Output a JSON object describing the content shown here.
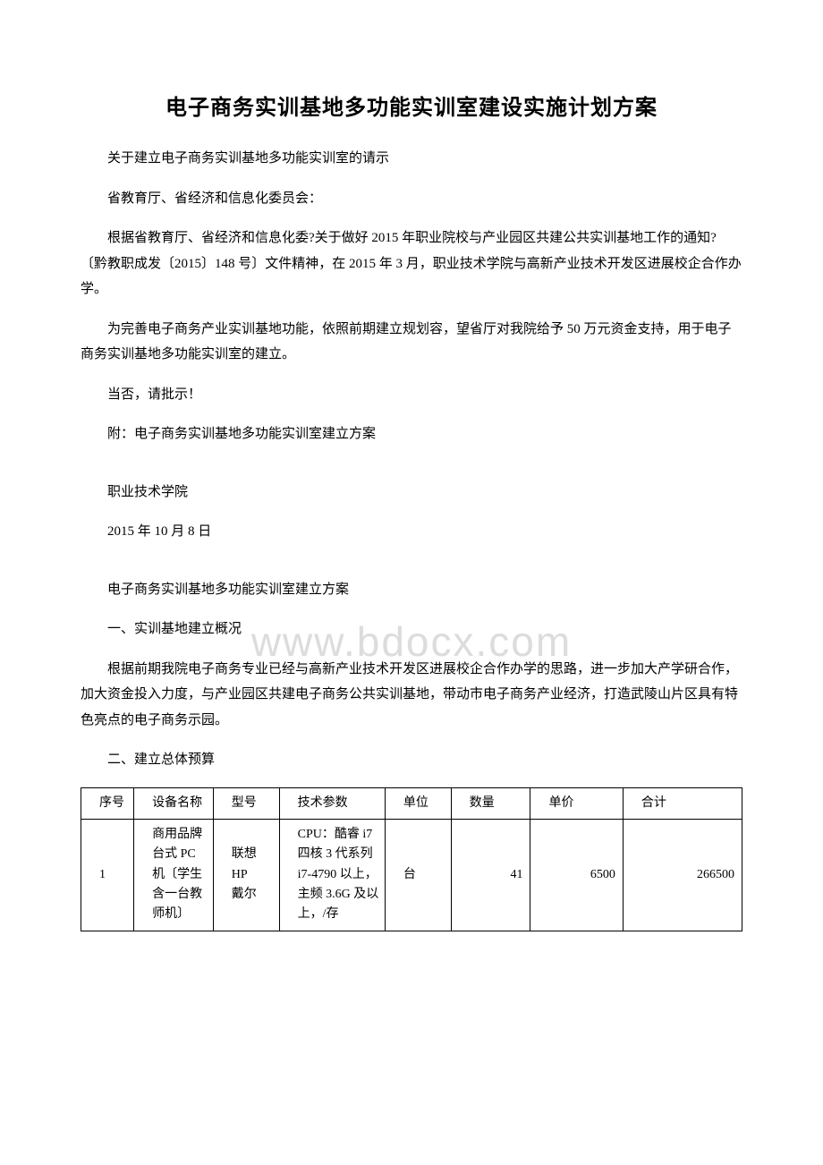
{
  "title": "电子商务实训基地多功能实训室建设实施计划方案",
  "p1": "关于建立电子商务实训基地多功能实训室的请示",
  "p2": "省教育厅、省经济和信息化委员会：",
  "p3": "根据省教育厅、省经济和信息化委?关于做好 2015 年职业院校与产业园区共建公共实训基地工作的通知?〔黔教职成发〔2015〕148 号〕文件精神，在 2015 年 3 月，职业技术学院与高新产业技术开发区进展校企合作办学。",
  "p4": "为完善电子商务产业实训基地功能，依照前期建立规划容，望省厅对我院给予 50 万元资金支持，用于电子商务实训基地多功能实训室的建立。",
  "p5": "当否，请批示！",
  "p6": "附：电子商务实训基地多功能实训室建立方案",
  "p7": "职业技术学院",
  "p8": "2015 年 10 月 8 日",
  "p9": "电子商务实训基地多功能实训室建立方案",
  "p10": "一、实训基地建立概况",
  "p11": "根据前期我院电子商务专业已经与高新产业技术开发区进展校企合作办学的思路，进一步加大产学研合作，加大资金投入力度，与产业园区共建电子商务公共实训基地，带动市电子商务产业经济，打造武陵山片区具有特色亮点的电子商务示园。",
  "p12": "二、建立总体预算",
  "watermark": "www.bdocx.com",
  "table": {
    "headers": {
      "seq": "序号",
      "name": "设备名称",
      "model": "型号",
      "spec": "技术参数",
      "unit": "单位",
      "qty": "数量",
      "price": "单价",
      "total": "合计"
    },
    "row1": {
      "seq": "1",
      "name": "商用品牌台式 PC 机〔学生含一台教师机〕",
      "model": "联想\nHP\n戴尔",
      "spec": "CPU：酷睿 i7 四核 3 代系列 i7-4790 以上，主频 3.6G 及以上，/存",
      "unit": "台",
      "qty": "41",
      "price": "6500",
      "total": "266500"
    }
  }
}
